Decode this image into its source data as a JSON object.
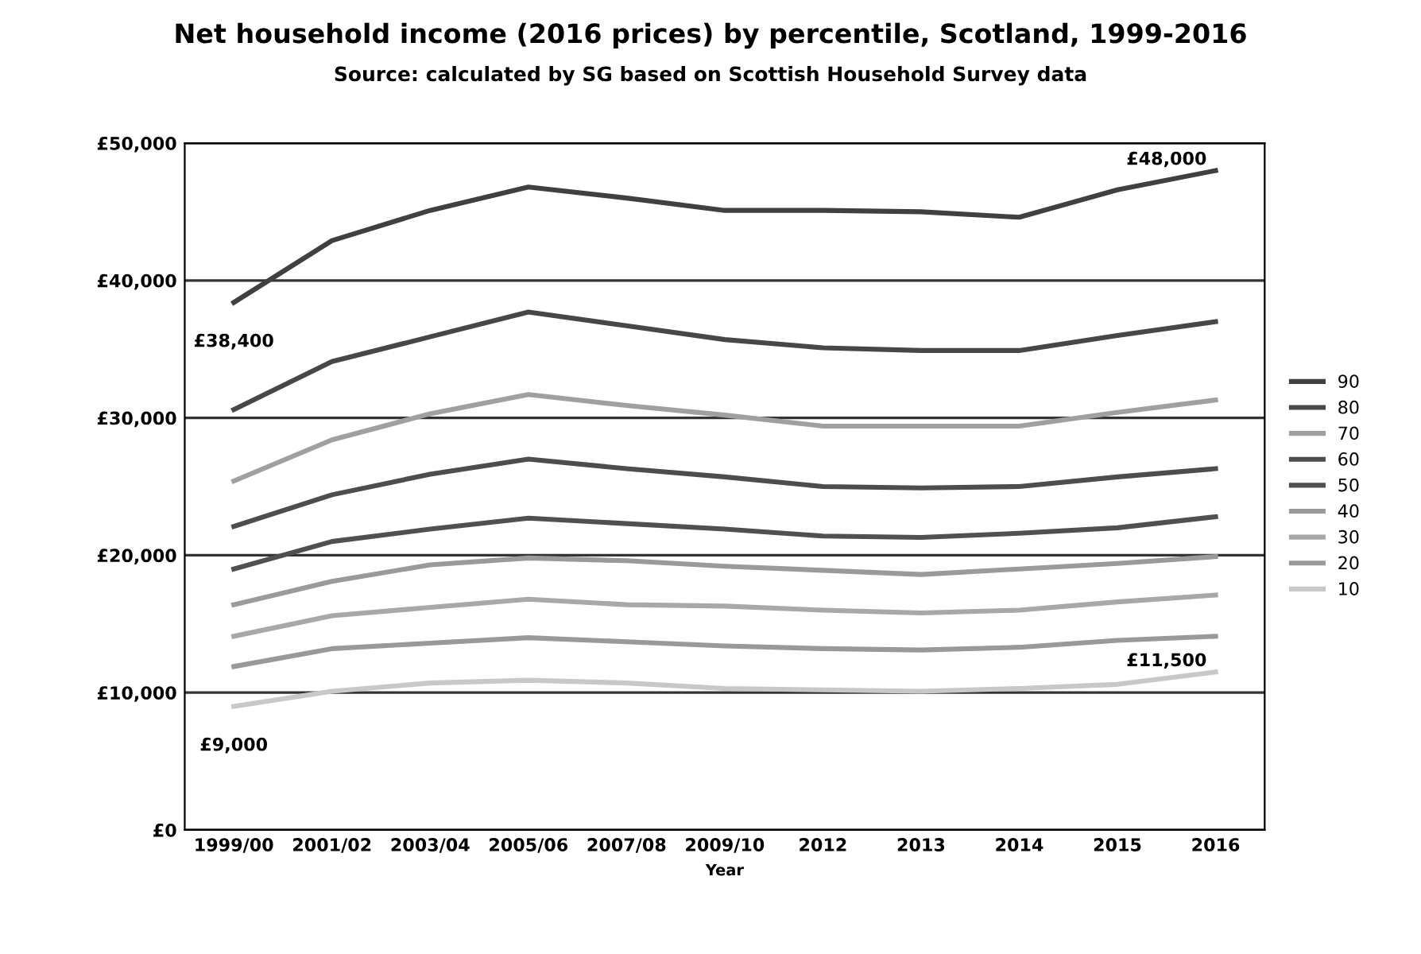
{
  "chart_data": {
    "type": "line",
    "title": "Net household income (2016 prices) by percentile, Scotland, 1999-2016",
    "subtitle": "Source: calculated by SG based on Scottish Household Survey data",
    "xlabel": "Year",
    "categories": [
      "1999/00",
      "2001/02",
      "2003/04",
      "2005/06",
      "2007/08",
      "2009/10",
      "2012",
      "2013",
      "2014",
      "2015",
      "2016"
    ],
    "series": [
      {
        "name": "90",
        "color": "#404040",
        "values": [
          38400,
          42900,
          45100,
          46800,
          46000,
          45100,
          45100,
          45000,
          44600,
          46600,
          48000
        ]
      },
      {
        "name": "80",
        "color": "#474747",
        "values": [
          30600,
          34100,
          35900,
          37700,
          36700,
          35700,
          35100,
          34900,
          34900,
          36000,
          37000
        ]
      },
      {
        "name": "70",
        "color": "#a0a0a0",
        "values": [
          25400,
          28400,
          30300,
          31700,
          30900,
          30200,
          29400,
          29400,
          29400,
          30400,
          31300
        ]
      },
      {
        "name": "60",
        "color": "#4d4d4d",
        "values": [
          22100,
          24400,
          25900,
          27000,
          26300,
          25700,
          25000,
          24900,
          25000,
          25700,
          26300
        ]
      },
      {
        "name": "50",
        "color": "#505050",
        "values": [
          19000,
          21000,
          21900,
          22700,
          22300,
          21900,
          21400,
          21300,
          21600,
          22000,
          22800
        ]
      },
      {
        "name": "40",
        "color": "#9a9a9a",
        "values": [
          16400,
          18100,
          19300,
          19800,
          19600,
          19200,
          18900,
          18600,
          19000,
          19400,
          19900
        ]
      },
      {
        "name": "30",
        "color": "#a8a8a8",
        "values": [
          14100,
          15600,
          16200,
          16800,
          16400,
          16300,
          16000,
          15800,
          16000,
          16600,
          17100
        ]
      },
      {
        "name": "20",
        "color": "#999999",
        "values": [
          11900,
          13200,
          13600,
          14000,
          13700,
          13400,
          13200,
          13100,
          13300,
          13800,
          14100
        ]
      },
      {
        "name": "10",
        "color": "#c8c8c8",
        "values": [
          9000,
          10100,
          10700,
          10900,
          10700,
          10300,
          10200,
          10100,
          10300,
          10600,
          11500
        ]
      }
    ],
    "ylim": [
      0,
      50000
    ],
    "yticks": [
      {
        "value": 0,
        "label": "£0"
      },
      {
        "value": 10000,
        "label": "£10,000"
      },
      {
        "value": 20000,
        "label": "£20,000"
      },
      {
        "value": 30000,
        "label": "£30,000"
      },
      {
        "value": 40000,
        "label": "£40,000"
      },
      {
        "value": 50000,
        "label": "£50,000"
      }
    ],
    "annotations": [
      {
        "text": "£38,400",
        "x": "1999/00",
        "y": 38400
      },
      {
        "text": "£48,000",
        "x": "2016",
        "y": 48000
      },
      {
        "text": "£9,000",
        "x": "1999/00",
        "y": 9000
      },
      {
        "text": "£11,500",
        "x": "2016",
        "y": 11500
      }
    ],
    "grid": "y",
    "legend": "right",
    "marker": "none",
    "line_style": "solid"
  }
}
